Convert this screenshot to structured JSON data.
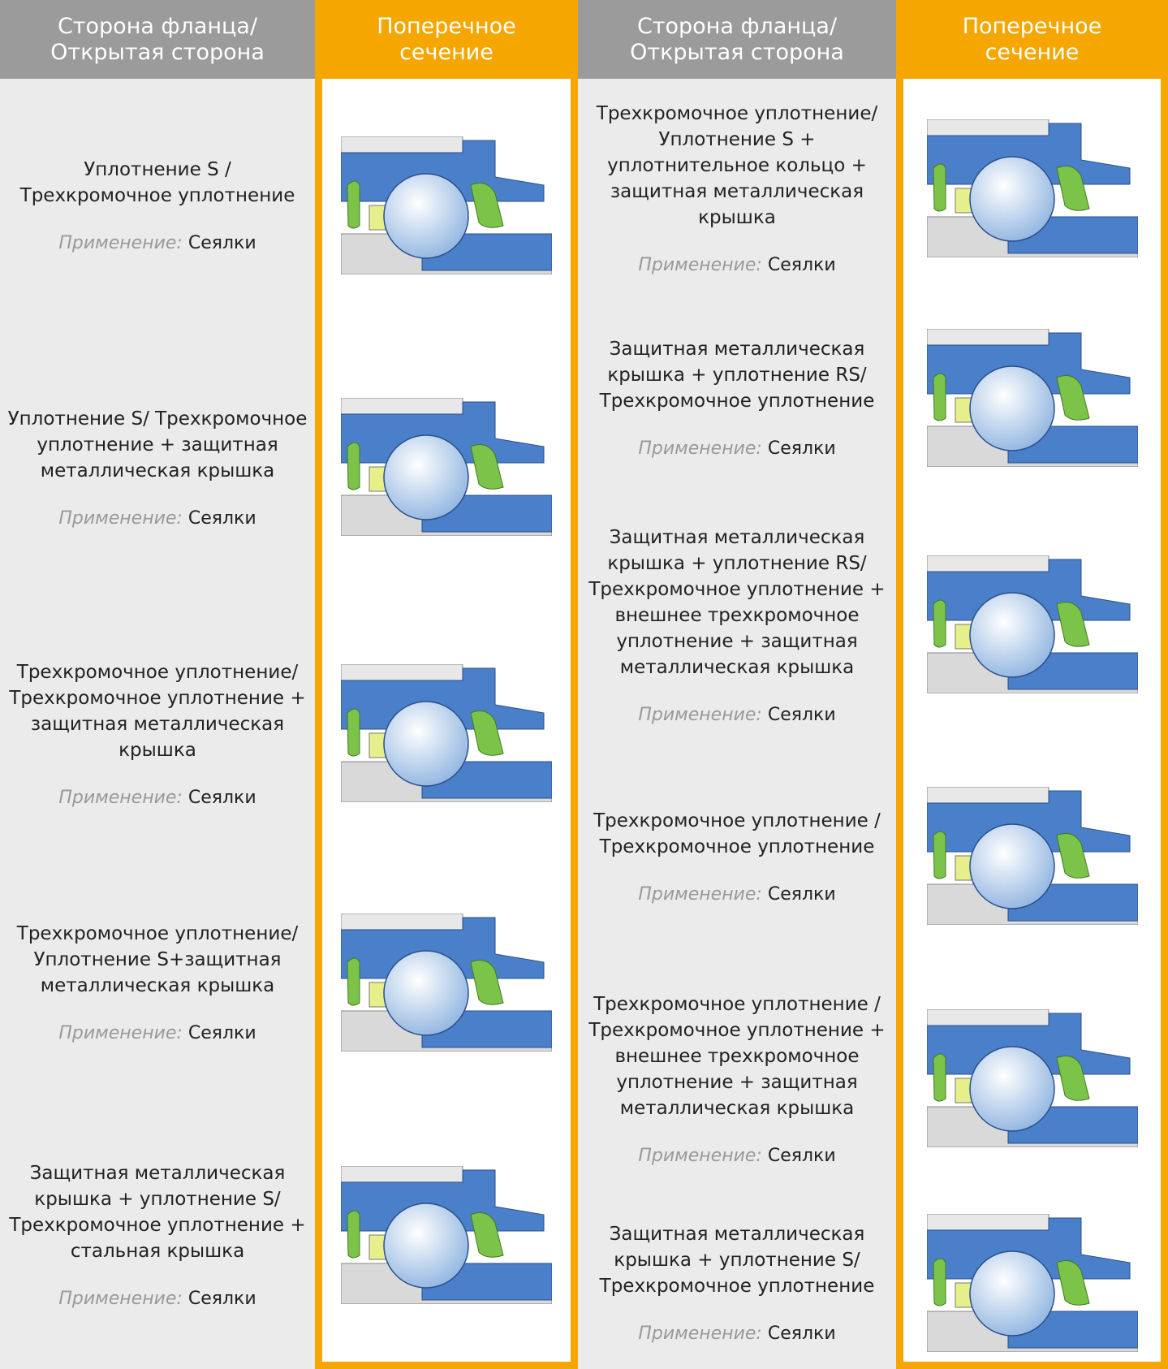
{
  "header": {
    "columns": [
      "Сторона фланца/ Открытая сторона",
      "Поперечное сечение",
      "Сторона фланца/ Открытая сторона",
      "Поперечное сечение"
    ]
  },
  "left": {
    "rows": [
      {
        "seal": "Уплотнение S / Трехкромочное уплотнение",
        "application_label": "Применение:",
        "application": "Сеялки"
      },
      {
        "seal": "Уплотнение S/ Трехкромочное уплотнение + защитная металлическая крышка",
        "application_label": "Применение:",
        "application": "Сеялки"
      },
      {
        "seal": "Трехкромочное уплотнение/ Трехкромочное уплотнение + защитная металлическая крышка",
        "application_label": "Применение:",
        "application": "Сеялки"
      },
      {
        "seal": "Трехкромочное уплотнение/ Уплотнение S+защитная металлическая крышка",
        "application_label": "Применение:",
        "application": "Сеялки"
      },
      {
        "seal": "Защитная металлическая крышка + уплотнение S/ Трехкромочное уплотнение + стальная крышка",
        "application_label": "Применение:",
        "application": "Сеялки"
      }
    ]
  },
  "right": {
    "rows": [
      {
        "seal": "Трехкромочное уплотнение/ Уплотнение S + уплотнительное кольцо + защитная металлическая крышка",
        "application_label": "Применение:",
        "application": "Сеялки"
      },
      {
        "seal": "Защитная металлическая крышка + уплотнение RS/ Трехкромочное уплотнение",
        "application_label": "Применение:",
        "application": "Сеялки"
      },
      {
        "seal": "Защитная металлическая крышка + уплотнение RS/ Трехкромочное уплотнение + внешнее трехкромочное уплотнение + защитная металлическая крышка",
        "application_label": "Применение:",
        "application": "Сеялки"
      },
      {
        "seal": "Трехкромочное уплотнение / Трехкромочное уплотнение",
        "application_label": "Применение:",
        "application": "Сеялки"
      },
      {
        "seal": "Трехкромочное уплотнение / Трехкромочное уплотнение + внешнее трехкромочное уплотнение + защитная металлическая крышка",
        "application_label": "Применение:",
        "application": "Сеялки"
      },
      {
        "seal": "Защитная металлическая крышка + уплотнение S/ Трехкромочное уплотнение",
        "application_label": "Применение:",
        "application": "Сеялки"
      }
    ]
  }
}
